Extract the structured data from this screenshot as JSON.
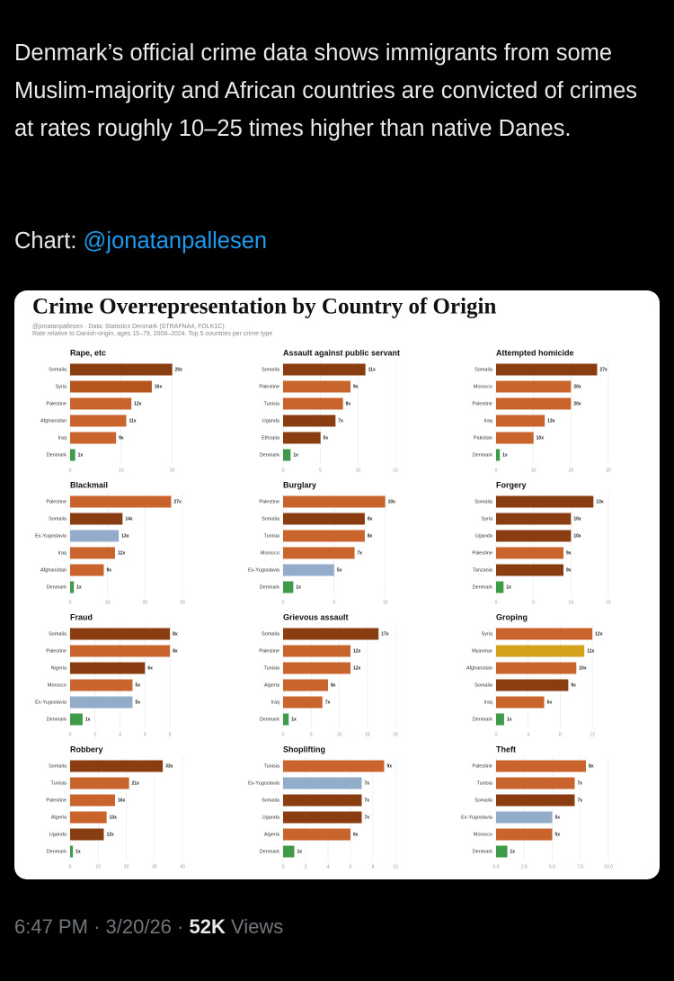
{
  "post": {
    "text": "Denmark’s official crime data shows immigrants from some Muslim-majority and African countries are convicted of crimes at rates roughly 10–25 times higher than native Danes.",
    "credit_label": "Chart:",
    "credit_handle": "@jonatanpallesen"
  },
  "figure": {
    "title": "Crime Overrepresentation by Country of Origin",
    "subtitle": [
      "@jonatanpallesen · Data: Statistics Denmark (STRAFNA4, FOLK1C)",
      "Rate relative to Danish-origin, ages 15–79, 2008–2024. Top 5 countries per crime type"
    ]
  },
  "chart_data": [
    {
      "type": "bar",
      "title": "Rape, etc",
      "categories": [
        "Somalia",
        "Syria",
        "Palestine",
        "Afghanistan",
        "Iraq",
        "Denmark"
      ],
      "values": [
        20,
        16,
        12,
        11,
        9,
        1
      ],
      "value_labels": [
        "20x",
        "16x",
        "12x",
        "11x",
        "9x",
        "1x"
      ],
      "colors": [
        "#8a3d10",
        "#b5561f",
        "#c9642c",
        "#c9642c",
        "#c9642c",
        "#3f9b4a"
      ],
      "xlim": [
        0,
        22
      ],
      "xticks": [
        0,
        10,
        20
      ],
      "grid": true
    },
    {
      "type": "bar",
      "title": "Assault against public servant",
      "categories": [
        "Somalia",
        "Palestine",
        "Tunisia",
        "Uganda",
        "Ethiopia",
        "Denmark"
      ],
      "values": [
        11,
        9,
        8,
        7,
        5,
        1
      ],
      "value_labels": [
        "11x",
        "9x",
        "8x",
        "7x",
        "5x",
        "1x"
      ],
      "colors": [
        "#8a3d10",
        "#c9642c",
        "#c9642c",
        "#8a3d10",
        "#8a3d10",
        "#3f9b4a"
      ],
      "xlim": [
        0,
        15
      ],
      "xticks": [
        0,
        5,
        10,
        15
      ],
      "grid": true
    },
    {
      "type": "bar",
      "title": "Attempted homicide",
      "categories": [
        "Somalia",
        "Morocco",
        "Palestine",
        "Iraq",
        "Pakistan",
        "Denmark"
      ],
      "values": [
        27,
        20,
        20,
        13,
        10,
        1
      ],
      "value_labels": [
        "27x",
        "20x",
        "20x",
        "13x",
        "10x",
        "1x"
      ],
      "colors": [
        "#8a3d10",
        "#c9642c",
        "#c9642c",
        "#c9642c",
        "#c9642c",
        "#3f9b4a"
      ],
      "xlim": [
        0,
        30
      ],
      "xticks": [
        0,
        10,
        20,
        30
      ],
      "grid": true
    },
    {
      "type": "bar",
      "title": "Blackmail",
      "categories": [
        "Palestine",
        "Somalia",
        "Ex-Yugoslavia",
        "Iraq",
        "Afghanistan",
        "Denmark"
      ],
      "values": [
        27,
        14,
        13,
        12,
        9,
        1
      ],
      "value_labels": [
        "27x",
        "14x",
        "13x",
        "12x",
        "9x",
        "1x"
      ],
      "colors": [
        "#c9642c",
        "#8a3d10",
        "#93acc9",
        "#c9642c",
        "#c9642c",
        "#3f9b4a"
      ],
      "xlim": [
        0,
        30
      ],
      "xticks": [
        0,
        10,
        20,
        30
      ],
      "grid": true
    },
    {
      "type": "bar",
      "title": "Burglary",
      "categories": [
        "Palestine",
        "Somalia",
        "Tunisia",
        "Morocco",
        "Ex-Yugoslavia",
        "Denmark"
      ],
      "values": [
        10,
        8,
        8,
        7,
        5,
        1
      ],
      "value_labels": [
        "10x",
        "8x",
        "8x",
        "7x",
        "5x",
        "1x"
      ],
      "colors": [
        "#c9642c",
        "#8a3d10",
        "#c9642c",
        "#c9642c",
        "#93acc9",
        "#3f9b4a"
      ],
      "xlim": [
        0,
        11
      ],
      "xticks": [
        0,
        5,
        10
      ],
      "grid": true
    },
    {
      "type": "bar",
      "title": "Forgery",
      "categories": [
        "Somalia",
        "Syria",
        "Uganda",
        "Palestine",
        "Tanzania",
        "Denmark"
      ],
      "values": [
        13,
        10,
        10,
        9,
        9,
        1
      ],
      "value_labels": [
        "13x",
        "10x",
        "10x",
        "9x",
        "9x",
        "1x"
      ],
      "colors": [
        "#8a3d10",
        "#8a3d10",
        "#8a3d10",
        "#c9642c",
        "#8a3d10",
        "#3f9b4a"
      ],
      "xlim": [
        0,
        15
      ],
      "xticks": [
        0,
        5,
        10,
        15
      ],
      "grid": true
    },
    {
      "type": "bar",
      "title": "Fraud",
      "categories": [
        "Somalia",
        "Palestine",
        "Nigeria",
        "Morocco",
        "Ex-Yugoslavia",
        "Denmark"
      ],
      "values": [
        8,
        8,
        6,
        5,
        5,
        1
      ],
      "value_labels": [
        "8x",
        "8x",
        "6x",
        "5x",
        "5x",
        "1x"
      ],
      "colors": [
        "#8a3d10",
        "#c9642c",
        "#8a3d10",
        "#c9642c",
        "#93acc9",
        "#3f9b4a"
      ],
      "xlim": [
        0,
        9
      ],
      "xticks": [
        0,
        2,
        4,
        6,
        8
      ],
      "grid": true
    },
    {
      "type": "bar",
      "title": "Grievous assault",
      "categories": [
        "Somalia",
        "Palestine",
        "Tunisia",
        "Algeria",
        "Iraq",
        "Denmark"
      ],
      "values": [
        17,
        12,
        12,
        8,
        7,
        1
      ],
      "value_labels": [
        "17x",
        "12x",
        "12x",
        "8x",
        "7x",
        "1x"
      ],
      "colors": [
        "#8a3d10",
        "#c9642c",
        "#c9642c",
        "#c9642c",
        "#c9642c",
        "#3f9b4a"
      ],
      "xlim": [
        0,
        20
      ],
      "xticks": [
        0,
        5,
        10,
        15,
        20
      ],
      "grid": true
    },
    {
      "type": "bar",
      "title": "Groping",
      "categories": [
        "Syria",
        "Myanmar",
        "Afghanistan",
        "Somalia",
        "Iraq",
        "Denmark"
      ],
      "values": [
        12,
        11,
        10,
        9,
        6,
        1
      ],
      "value_labels": [
        "12x",
        "11x",
        "10x",
        "9x",
        "6x",
        "1x"
      ],
      "colors": [
        "#c9642c",
        "#d6a21c",
        "#c9642c",
        "#8a3d10",
        "#c9642c",
        "#3f9b4a"
      ],
      "xlim": [
        0,
        14
      ],
      "xticks": [
        0,
        4,
        8,
        12
      ],
      "grid": true
    },
    {
      "type": "bar",
      "title": "Robbery",
      "categories": [
        "Somalia",
        "Tunisia",
        "Palestine",
        "Algeria",
        "Uganda",
        "Denmark"
      ],
      "values": [
        33,
        21,
        16,
        13,
        12,
        1
      ],
      "value_labels": [
        "33x",
        "21x",
        "16x",
        "13x",
        "12x",
        "1x"
      ],
      "colors": [
        "#8a3d10",
        "#c9642c",
        "#c9642c",
        "#c9642c",
        "#8a3d10",
        "#3f9b4a"
      ],
      "xlim": [
        0,
        40
      ],
      "xticks": [
        0,
        10,
        20,
        30,
        40
      ],
      "grid": true
    },
    {
      "type": "bar",
      "title": "Shoplifting",
      "categories": [
        "Tunisia",
        "Ex-Yugoslavia",
        "Somalia",
        "Uganda",
        "Algeria",
        "Denmark"
      ],
      "values": [
        9,
        7,
        7,
        7,
        6,
        1
      ],
      "value_labels": [
        "9x",
        "7x",
        "7x",
        "7x",
        "6x",
        "1x"
      ],
      "colors": [
        "#c9642c",
        "#93acc9",
        "#8a3d10",
        "#8a3d10",
        "#c9642c",
        "#3f9b4a"
      ],
      "xlim": [
        0,
        10
      ],
      "xticks": [
        0,
        2,
        4,
        6,
        8,
        10
      ],
      "grid": true
    },
    {
      "type": "bar",
      "title": "Theft",
      "categories": [
        "Palestine",
        "Tunisia",
        "Somalia",
        "Ex-Yugoslavia",
        "Morocco",
        "Denmark"
      ],
      "values": [
        8,
        7,
        7,
        5,
        5,
        1
      ],
      "value_labels": [
        "8x",
        "7x",
        "7x",
        "5x",
        "5x",
        "1x"
      ],
      "colors": [
        "#c9642c",
        "#c9642c",
        "#8a3d10",
        "#93acc9",
        "#c9642c",
        "#3f9b4a"
      ],
      "xlim": [
        0,
        10
      ],
      "xticks": [
        {
          "value": 0,
          "label": "0.0"
        },
        {
          "value": 2.5,
          "label": "2.5"
        },
        {
          "value": 5,
          "label": "5.0"
        },
        {
          "value": 7.5,
          "label": "7.5"
        },
        {
          "value": 10,
          "label": "10.0"
        }
      ],
      "grid": true
    }
  ],
  "footer": {
    "time": "6:47 PM",
    "separator": "·",
    "date": "3/20/26",
    "views_count": "52K",
    "views_label": "Views"
  }
}
